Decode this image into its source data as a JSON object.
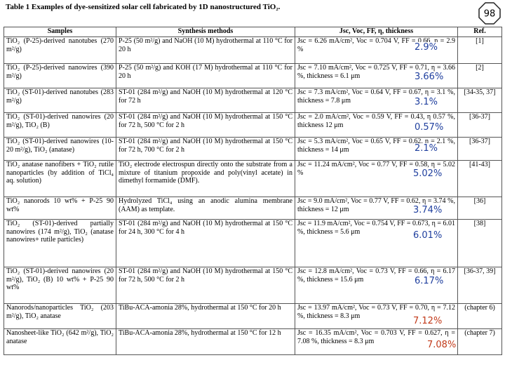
{
  "title": "Table 1 Examples of dye-sensitized solar cell fabricated by 1D nanostructured TiO₂.",
  "page_number": "98",
  "table": {
    "headers": [
      "Samples",
      "Synthesis methods",
      "Jsc, Voc, FF, η, thickness",
      "Ref."
    ],
    "rows": [
      [
        "TiO₂ (P-25)-derived nanotubes (270 m²/g)",
        "P-25 (50 m²/g) and NaOH (10 M) hydrothermal at 110 °C for 20 h",
        "Jsc = 6.26 mA/cm², Voc = 0.704 V, FF = 0.66, η = 2.9 %",
        "[1]"
      ],
      [
        "TiO₂ (P-25)-derived nanowires (390 m²/g)",
        "P-25 (50 m²/g) and KOH (17 M) hydrothermal at 110 °C for 20 h",
        "Jsc = 7.10 mA/cm², Voc = 0.725 V, FF = 0.71, η = 3.66 %, thickness = 6.1 μm",
        "[2]"
      ],
      [
        "TiO₂ (ST-01)-derived nanotubes (283 m²/g)",
        "ST-01 (284 m²/g) and NaOH (10 M) hydrothermal at 120 °C for 72 h",
        "Jsc = 7.3 mA/cm², Voc = 0.64 V, FF = 0.67, η = 3.1 %, thickness = 7.8 μm",
        "[34-35, 37]"
      ],
      [
        "TiO₂ (ST-01)-derived nanowires (20 m²/g), TiO₂ (B)",
        "ST-01 (284 m²/g) and NaOH (10 M) hydrothermal at 150 °C for 72 h, 500 °C for 2 h",
        "Jsc = 2.0 mA/cm², Voc = 0.59 V, FF = 0.43, η 0.57 %, thickness 12 μm",
        "[36-37]"
      ],
      [
        "TiO₂ (ST-01)-derived nanowires (10-20 m²/g), TiO₂ (anatase)",
        "ST-01 (284 m²/g) and NaOH (10 M) hydrothermal at 150 °C for 72 h, 700 °C for 2 h",
        "Jsc = 5.3 mA/cm², Voc = 0.65 V, FF = 0.62, η = 2.1 %, thickness = 14 μm",
        "[36-37]"
      ],
      [
        "TiO₂ anatase nanofibers + TiO₂ rutile nanoparticles (by addition of TiCl₄ aq. solution)",
        "TiO₂ electrode electrospun directly onto the substrate from a mixture of titanium propoxide and poly(vinyl acetate) in dimethyl formamide (DMF).",
        "Jsc = 11.24 mA/cm², Voc = 0.77 V, FF = 0.58, η = 5.02 %",
        "[41-43]"
      ],
      [
        "TiO₂ nanorods 10 wt% + P-25 90 wt%",
        "Hydrolyzed TiCl₄ using an anodic alumina membrane (AAM) as template.",
        "Jsc = 9.0 mA/cm², Voc = 0.77 V, FF = 0.62, η = 3.74 %, thickness = 12 μm",
        "[36]"
      ],
      [
        "TiO₂ (ST-01)-derived partially nanowires (174 m²/g), TiO₂ (anatase nanowires+ rutile particles)",
        "ST-01 (284 m²/g) and NaOH (10 M) hydrothermal at 150 °C for 24 h, 300 °C for 4 h",
        "Jsc = 11.9 mA/cm², Voc = 0.754 V, FF = 0.673, η = 6.01 %, thickness = 5.6 μm",
        "[38]"
      ],
      [
        "TiO₂ (ST-01)-derived nanowires (20 m²/g), TiO₂ (B) 10 wt% + P-25 90 wt%",
        "ST-01 (284 m²/g) and NaOH (10 M) hydrothermal at 150 °C for 72 h, 500 °C for 2 h",
        "Jsc = 12.8 mA/cm², Voc = 0.73 V, FF = 0.66, η = 6.17 %, thickness = 15.6 μm",
        "[36-37, 39]"
      ],
      [
        "Nanorods/nanoparticles TiO₂ (203 m²/g), TiO₂ anatase",
        "TiBu-ACA-amonia 28%, hydrothermal at 150 °C for 20 h",
        "Jsc = 13.97 mA/cm², Voc = 0.73 V, FF = 0.70, η = 7.12 %, thickness = 8.3 μm",
        "(chapter 6)"
      ],
      [
        "Nanosheet-like TiO₂ (642 m²/g), TiO₂ anatase",
        "TiBu-ACA-amonia 28%, hydrothermal at 150 °C for 12 h",
        "Jsc = 16.35 mA/cm², Voc = 0.703 V, FF = 0.627, η = 7.08 %, thickness = 8.3 μm",
        "(chapter 7)"
      ]
    ]
  },
  "annotations": [
    {
      "text": "2.9%",
      "color": "#1f3f9e"
    },
    {
      "text": "3.66%",
      "color": "#1f3f9e"
    },
    {
      "text": "3.1%",
      "color": "#1f3f9e"
    },
    {
      "text": "0.57%",
      "color": "#1f3f9e"
    },
    {
      "text": "2.1%",
      "color": "#1f3f9e"
    },
    {
      "text": "5.02%",
      "color": "#1f3f9e"
    },
    {
      "text": "3.74%",
      "color": "#1f3f9e"
    },
    {
      "text": "6.01%",
      "color": "#1f3f9e"
    },
    {
      "text": "6.17%",
      "color": "#1f3f9e"
    },
    {
      "text": "7.12%",
      "color": "#c23a1a"
    },
    {
      "text": "7.08%",
      "color": "#c23a1a"
    }
  ]
}
